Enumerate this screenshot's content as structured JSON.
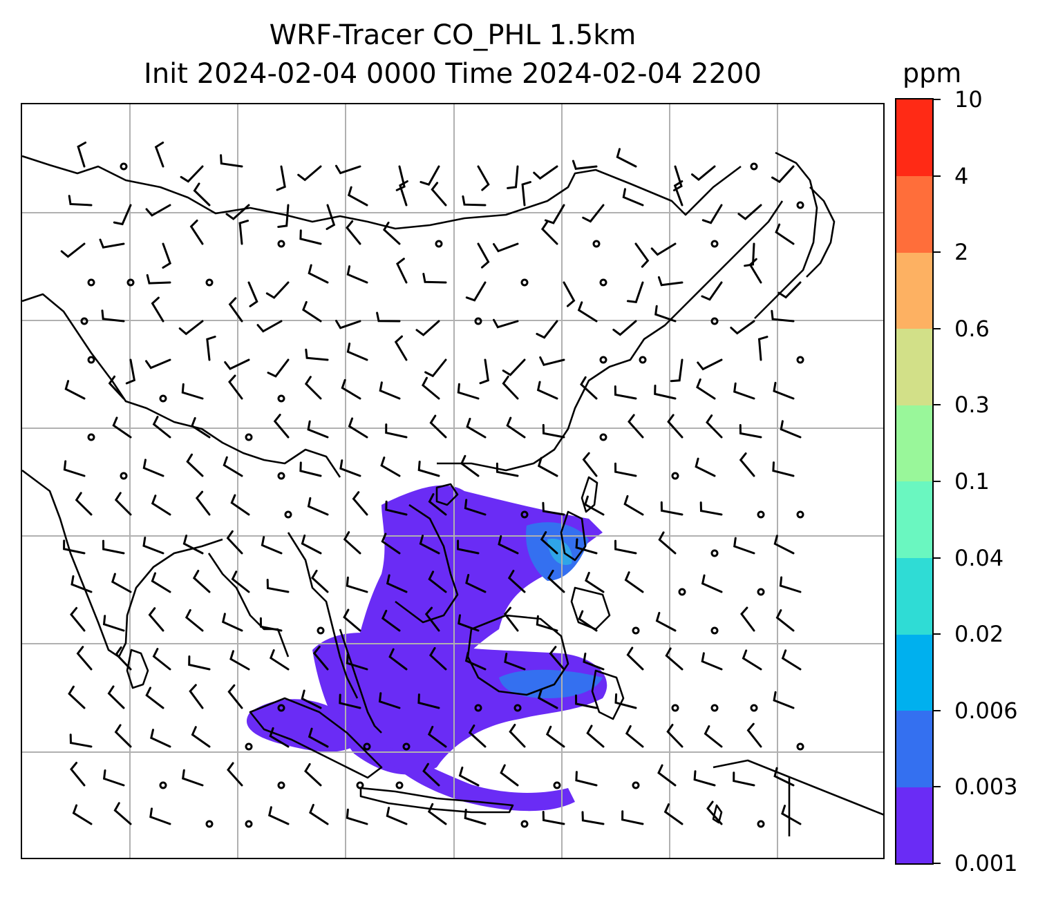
{
  "title": {
    "line1": "WRF-Tracer CO_PHL 1.5km",
    "line2": "Init 2024-02-04 0000 Time 2024-02-04 2200"
  },
  "colorbar": {
    "units": "ppm",
    "ticks": [
      "0.001",
      "0.003",
      "0.006",
      "0.02",
      "0.04",
      "0.1",
      "0.3",
      "0.6",
      "2",
      "4",
      "10"
    ],
    "colors": [
      "#6a2cf5",
      "#3470f0",
      "#00b0ee",
      "#2fdcd5",
      "#6af7c0",
      "#99f79a",
      "#d2e088",
      "#fdb162",
      "#ff6e3a",
      "#ff2a15"
    ]
  },
  "map": {
    "coastline_color": "#000000",
    "gridline_color": "#b0b0b0",
    "plume_colors": {
      "low": "#6a2cf5",
      "mid": "#3470f0",
      "high": "#2fa5e8"
    }
  }
}
